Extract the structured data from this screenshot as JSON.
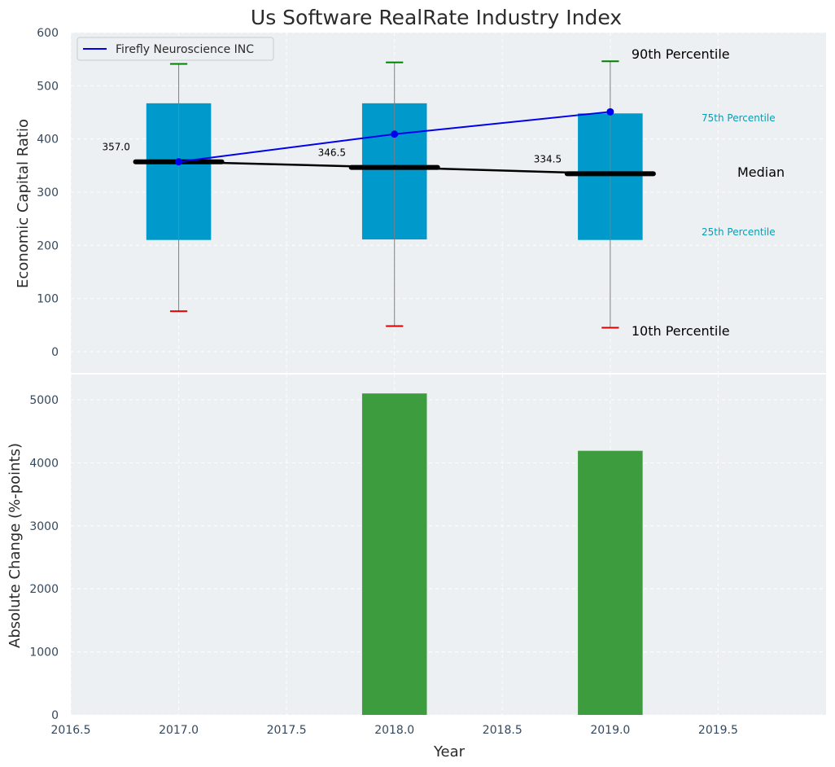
{
  "chart_data": [
    {
      "type": "box",
      "title": "Us Software RealRate Industry Index",
      "ylabel": "Economic Capital Ratio",
      "xlim": [
        2016.5,
        2020.0
      ],
      "ylim": [
        -40,
        600
      ],
      "yticks": [
        "0",
        "100",
        "200",
        "300",
        "400",
        "500",
        "600"
      ],
      "grid": true,
      "legend": {
        "position": "top-left",
        "entries": [
          "Firefly Neuroscience INC"
        ]
      },
      "x": [
        2017.0,
        2018.0,
        2019.0
      ],
      "p10": [
        76,
        48,
        45
      ],
      "p25": [
        210,
        211,
        210
      ],
      "median": [
        357.0,
        346.5,
        334.5
      ],
      "p75": [
        467,
        467,
        448
      ],
      "p90": [
        541,
        544,
        546
      ],
      "median_labels": [
        "357.0",
        "346.5",
        "334.5"
      ],
      "series": [
        {
          "name": "Firefly Neuroscience INC",
          "values": [
            357,
            409,
            451
          ],
          "color": "#0000ee"
        }
      ],
      "annotations": {
        "p90": "90th Percentile",
        "p75": "75th Percentile",
        "median": "Median",
        "p25": "25th Percentile",
        "p10": "10th Percentile"
      },
      "colors": {
        "box": "#0099cc",
        "median": "#000000",
        "p90_cap": "#008000",
        "p10_cap": "#dd0000",
        "whisker": "#808080",
        "percentile_label": "#00a0b8"
      }
    },
    {
      "type": "bar",
      "xlabel": "Year",
      "ylabel": "Absolute Change (%-points)",
      "xlim": [
        2016.5,
        2020.0
      ],
      "ylim": [
        0,
        5400
      ],
      "xticks": [
        "2016.5",
        "2017.0",
        "2017.5",
        "2018.0",
        "2018.5",
        "2019.0",
        "2019.5"
      ],
      "yticks": [
        "0",
        "1000",
        "2000",
        "3000",
        "4000",
        "5000"
      ],
      "grid": true,
      "x": [
        2018.0,
        2019.0
      ],
      "values": [
        5100,
        4190
      ],
      "color": "#3d9c3d"
    }
  ]
}
